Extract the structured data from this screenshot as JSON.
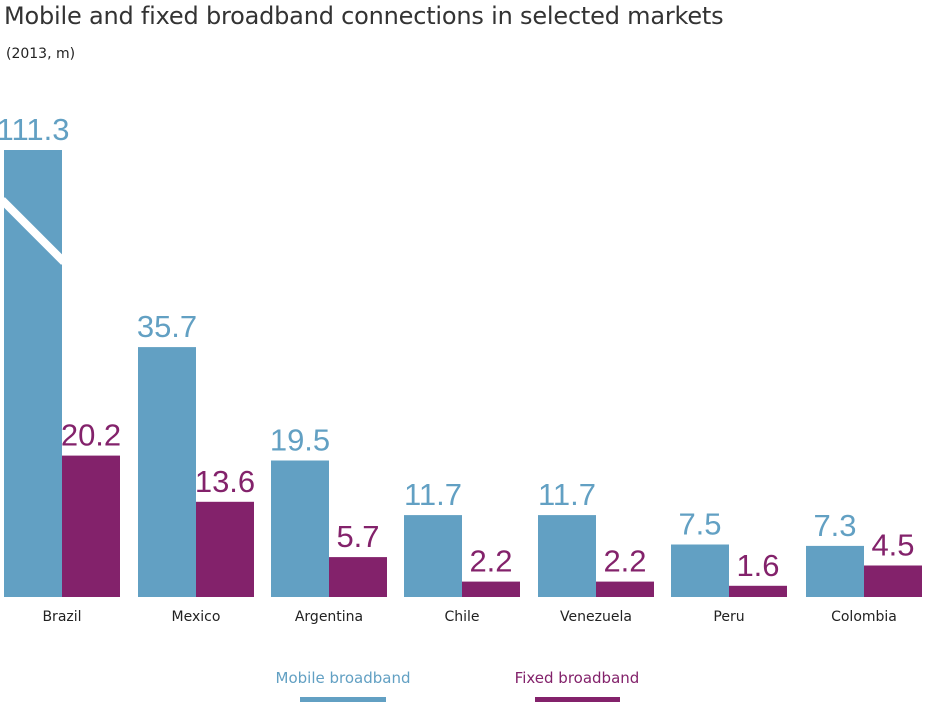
{
  "title": "Mobile and fixed broadband connections in selected markets",
  "subtitle": "(2013, m)",
  "colors": {
    "mobile": "#62a0c3",
    "fixed": "#83226b"
  },
  "chart_data": {
    "type": "bar",
    "title": "Mobile and fixed broadband connections in selected markets",
    "subtitle": "(2013, m)",
    "categories": [
      "Brazil",
      "Mexico",
      "Argentina",
      "Chile",
      "Venezuela",
      "Peru",
      "Colombia"
    ],
    "series": [
      {
        "name": "Mobile broadband",
        "values": [
          111.3,
          35.7,
          19.5,
          11.7,
          11.7,
          7.5,
          7.3
        ],
        "labels": [
          "111.3",
          "35.7",
          "19.5",
          "11.7",
          "11.7",
          "7.5",
          "7.3"
        ]
      },
      {
        "name": "Fixed broadband",
        "values": [
          20.2,
          13.6,
          5.7,
          2.2,
          2.2,
          1.6,
          4.5
        ],
        "labels": [
          "20.2",
          "13.6",
          "5.7",
          "2.2",
          "2.2",
          "1.6",
          "4.5"
        ]
      }
    ],
    "axis_break": {
      "category": "Brazil",
      "series": "Mobile broadband"
    },
    "ylim": [
      0,
      50
    ],
    "grid": false,
    "legend": "bottom-center"
  }
}
